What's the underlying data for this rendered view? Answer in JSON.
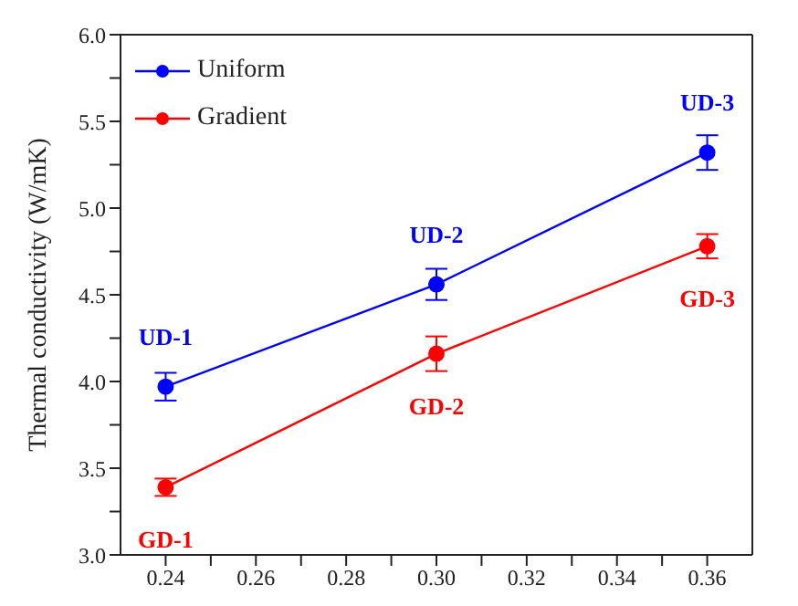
{
  "chart_data": {
    "type": "line",
    "xlabel": null,
    "ylabel": "Thermal conductivity (W/mK)",
    "x": [
      0.24,
      0.3,
      0.36
    ],
    "series": [
      {
        "name": "Uniform",
        "color": "#0000ff",
        "values": [
          3.97,
          4.56,
          5.32
        ],
        "errors": [
          0.08,
          0.09,
          0.1
        ]
      },
      {
        "name": "Gradient",
        "color": "#ff0000",
        "values": [
          3.39,
          4.16,
          4.78
        ],
        "errors": [
          0.05,
          0.1,
          0.07
        ]
      }
    ],
    "xlim": [
      0.23,
      0.37
    ],
    "xticks": [
      0.24,
      {
        "value": 0.25,
        "label": null
      },
      0.26,
      {
        "value": 0.27,
        "label": null
      },
      0.28,
      {
        "value": 0.29,
        "label": null
      },
      {
        "value": 0.3,
        "label": "0.30"
      },
      {
        "value": 0.31,
        "label": null
      },
      0.32,
      {
        "value": 0.33,
        "label": null
      },
      0.34,
      {
        "value": 0.35,
        "label": null
      },
      0.36
    ],
    "ylim": [
      3,
      6
    ],
    "yticks": [
      {
        "value": 3,
        "label": "3.0"
      },
      {
        "value": 3.25,
        "label": null
      },
      3.5,
      {
        "value": 3.75,
        "label": null
      },
      {
        "value": 4,
        "label": "4.0"
      },
      {
        "value": 4.25,
        "label": null
      },
      4.5,
      {
        "value": 4.75,
        "label": null
      },
      {
        "value": 5,
        "label": "5.0"
      },
      {
        "value": 5.25,
        "label": null
      },
      5.5,
      {
        "value": 5.75,
        "label": null
      },
      {
        "value": 6,
        "label": "6.0"
      }
    ],
    "annotations": [
      "UD-1",
      "UD-2",
      "UD-3",
      "GD-1",
      "GD-2",
      "GD-3"
    ],
    "grid": false,
    "legend": "top left",
    "marker": "circle",
    "line_style": "solid"
  }
}
